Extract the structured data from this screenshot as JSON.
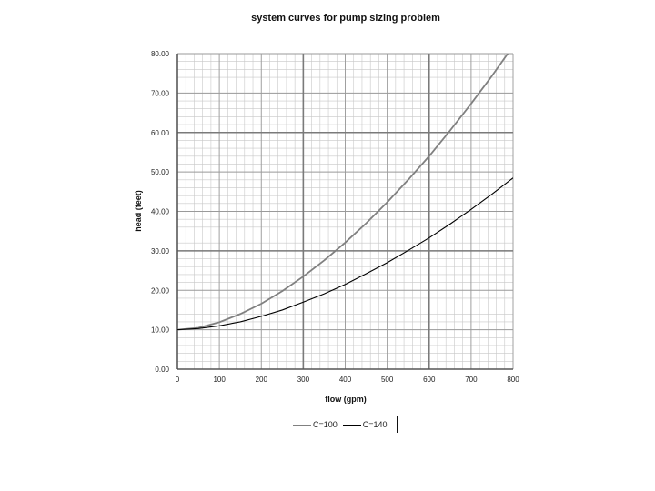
{
  "chart_data": {
    "type": "line",
    "title": "system curves for pump sizing problem",
    "xlabel": "flow (gpm)",
    "ylabel": "head (feet)",
    "xlim": [
      0,
      800
    ],
    "ylim": [
      0,
      80
    ],
    "x_ticks": [
      0,
      100,
      200,
      300,
      400,
      500,
      600,
      700,
      800
    ],
    "y_ticks": [
      0,
      10,
      20,
      30,
      40,
      50,
      60,
      70,
      80
    ],
    "x_tick_labels": [
      "0",
      "100",
      "200",
      "300",
      "400",
      "500",
      "600",
      "700",
      "800"
    ],
    "y_tick_labels": [
      "0.00",
      "10.00",
      "20.00",
      "30.00",
      "40.00",
      "50.00",
      "60.00",
      "70.00",
      "80.00"
    ],
    "grid": true,
    "legend_position": "bottom",
    "x": [
      0,
      50,
      100,
      150,
      200,
      250,
      300,
      350,
      400,
      450,
      500,
      550,
      600,
      650,
      700,
      750,
      800
    ],
    "series": [
      {
        "name": "C=100",
        "color": "#808080",
        "values": [
          10.0,
          10.5,
          11.9,
          14.0,
          16.6,
          19.8,
          23.5,
          27.6,
          32.1,
          37.0,
          42.3,
          48.0,
          54.0,
          60.5,
          67.3,
          74.4,
          81.9
        ]
      },
      {
        "name": "C=140",
        "color": "#000000",
        "values": [
          10.0,
          10.3,
          11.0,
          12.0,
          13.4,
          15.0,
          17.0,
          19.1,
          21.5,
          24.2,
          27.0,
          30.1,
          33.3,
          36.8,
          40.5,
          44.4,
          48.5
        ]
      }
    ]
  }
}
